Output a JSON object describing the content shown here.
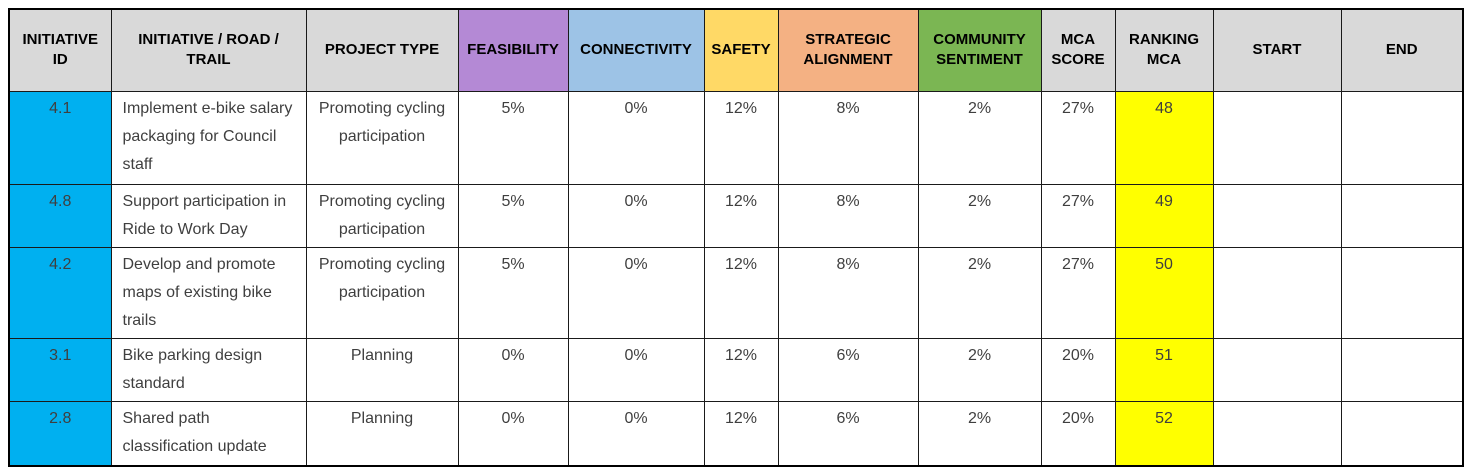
{
  "table": {
    "columns": [
      {
        "key": "id",
        "label": "INITIATIVE ID",
        "header_bg": "#d9d9d9"
      },
      {
        "key": "name",
        "label": "INITIATIVE / ROAD / TRAIL",
        "header_bg": "#d9d9d9"
      },
      {
        "key": "project_type",
        "label": "PROJECT TYPE",
        "header_bg": "#d9d9d9"
      },
      {
        "key": "feasibility",
        "label": "FEASIBILITY",
        "header_bg": "#b489d5"
      },
      {
        "key": "connectivity",
        "label": "CONNECTIVITY",
        "header_bg": "#9dc3e6"
      },
      {
        "key": "safety",
        "label": "SAFETY",
        "header_bg": "#ffd966"
      },
      {
        "key": "strategic_alignment",
        "label": "STRATEGIC ALIGNMENT",
        "header_bg": "#f4b183"
      },
      {
        "key": "community_sentiment",
        "label": "COMMUNITY SENTIMENT",
        "header_bg": "#7bb653"
      },
      {
        "key": "mca_score",
        "label": "MCA SCORE",
        "header_bg": "#d9d9d9"
      },
      {
        "key": "ranking_mca",
        "label": "RANKING MCA",
        "header_bg": "#d9d9d9"
      },
      {
        "key": "start",
        "label": "START",
        "header_bg": "#d9d9d9"
      },
      {
        "key": "end",
        "label": "END",
        "header_bg": "#d9d9d9"
      }
    ],
    "rows": [
      {
        "id": "4.1",
        "name": "Implement e-bike salary packaging for Council staff",
        "project_type": "Promoting cycling participation",
        "feasibility": "5%",
        "connectivity": "0%",
        "safety": "12%",
        "strategic_alignment": "8%",
        "community_sentiment": "2%",
        "mca_score": "27%",
        "ranking_mca": "48",
        "start": "",
        "end": ""
      },
      {
        "id": "4.8",
        "name": "Support participation in Ride to Work Day",
        "project_type": "Promoting cycling participation",
        "feasibility": "5%",
        "connectivity": "0%",
        "safety": "12%",
        "strategic_alignment": "8%",
        "community_sentiment": "2%",
        "mca_score": "27%",
        "ranking_mca": "49",
        "start": "",
        "end": ""
      },
      {
        "id": "4.2",
        "name": "Develop and promote maps of existing bike trails",
        "project_type": "Promoting cycling participation",
        "feasibility": "5%",
        "connectivity": "0%",
        "safety": "12%",
        "strategic_alignment": "8%",
        "community_sentiment": "2%",
        "mca_score": "27%",
        "ranking_mca": "50",
        "start": "",
        "end": ""
      },
      {
        "id": "3.1",
        "name": "Bike parking design standard",
        "project_type": "Planning",
        "feasibility": "0%",
        "connectivity": "0%",
        "safety": "12%",
        "strategic_alignment": "6%",
        "community_sentiment": "2%",
        "mca_score": "20%",
        "ranking_mca": "51",
        "start": "",
        "end": ""
      },
      {
        "id": "2.8",
        "name": "Shared path classification update",
        "project_type": "Planning",
        "feasibility": "0%",
        "connectivity": "0%",
        "safety": "12%",
        "strategic_alignment": "6%",
        "community_sentiment": "2%",
        "mca_score": "20%",
        "ranking_mca": "52",
        "start": "",
        "end": ""
      }
    ],
    "colors": {
      "header_gray": "#d9d9d9",
      "feasibility_header": "#b489d5",
      "connectivity_header": "#9dc3e6",
      "safety_header": "#ffd966",
      "strategic_alignment_header": "#f4b183",
      "community_sentiment_header": "#7bb653",
      "id_cell": "#00b0f0",
      "ranking_cell": "#ffff00",
      "body_text": "#3f3f3f",
      "header_text": "#000000",
      "border": "#1a1a1a"
    }
  }
}
